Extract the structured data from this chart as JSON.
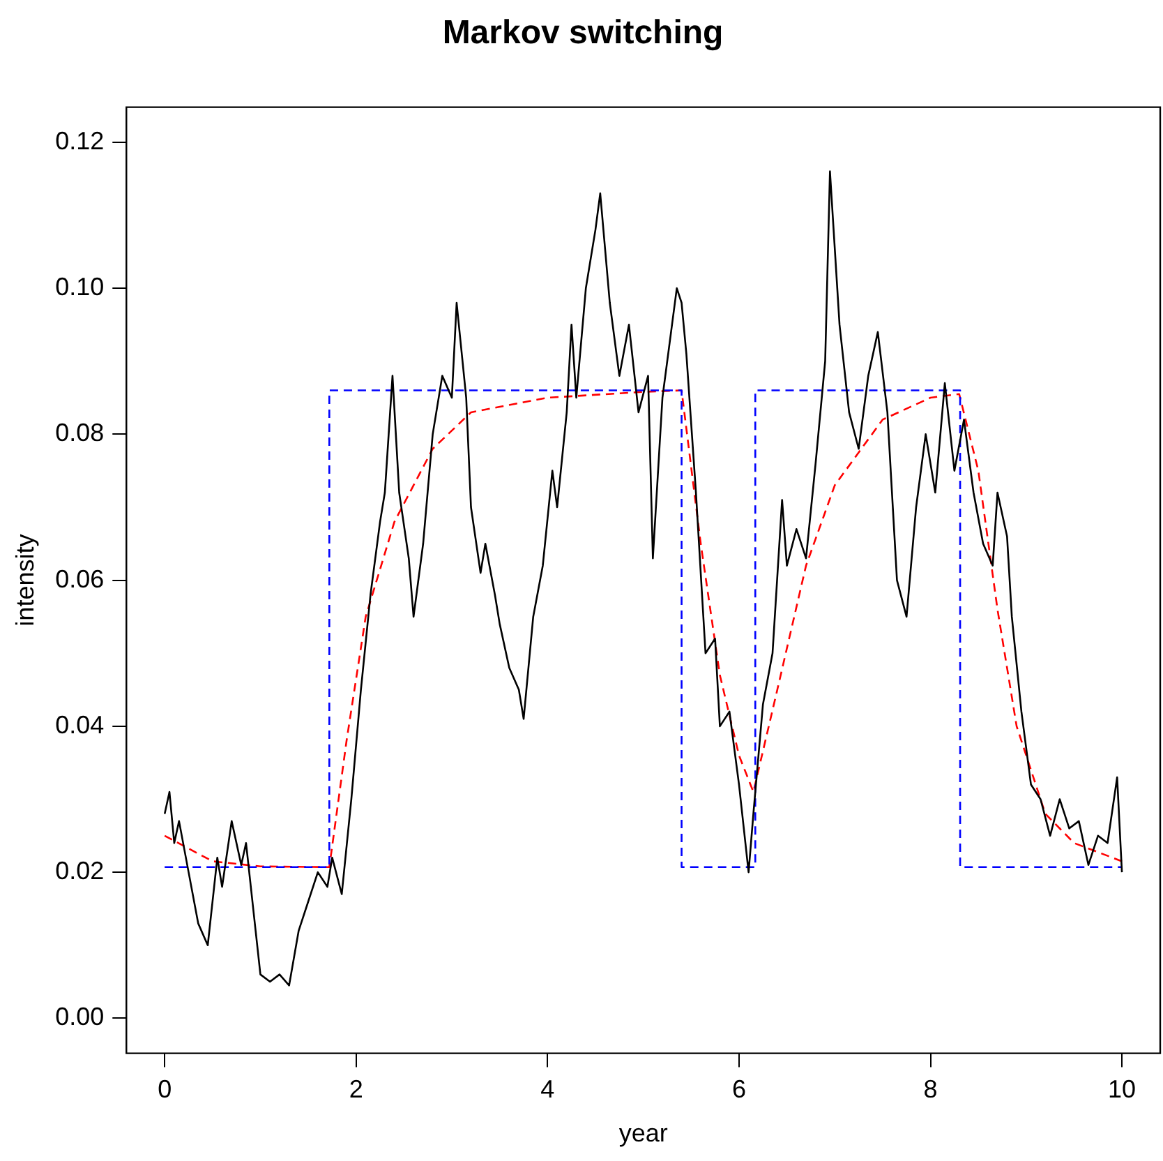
{
  "chart_data": {
    "type": "line",
    "title": "Markov switching",
    "xlabel": "year",
    "ylabel": "intensity",
    "xlim": [
      -0.4,
      10.4
    ],
    "xticks": [
      0,
      2,
      4,
      6,
      8,
      10
    ],
    "ylim": [
      -0.0048,
      0.1248
    ],
    "yticks": [
      {
        "value": 0,
        "label": "0.00"
      },
      0.02,
      0.04,
      0.06,
      0.08,
      {
        "value": 0.1,
        "label": "0.10"
      },
      0.12
    ],
    "grid": false,
    "legend": false,
    "marker": "none",
    "series": [
      {
        "color": "#000000",
        "line_style": "solid",
        "x": [
          0,
          0.05,
          0.1,
          0.15,
          0.25,
          0.35,
          0.45,
          0.55,
          0.6,
          0.7,
          0.8,
          0.85,
          0.95,
          1.0,
          1.1,
          1.2,
          1.3,
          1.4,
          1.5,
          1.6,
          1.7,
          1.75,
          1.85,
          1.95,
          2.05,
          2.15,
          2.25,
          2.3,
          2.38,
          2.45,
          2.55,
          2.6,
          2.7,
          2.8,
          2.9,
          3.0,
          3.05,
          3.15,
          3.2,
          3.3,
          3.35,
          3.45,
          3.5,
          3.6,
          3.7,
          3.75,
          3.85,
          3.95,
          4.05,
          4.1,
          4.2,
          4.25,
          4.3,
          4.4,
          4.5,
          4.55,
          4.65,
          4.75,
          4.85,
          4.95,
          5.05,
          5.1,
          5.2,
          5.3,
          5.35,
          5.4,
          5.45,
          5.55,
          5.65,
          5.75,
          5.8,
          5.9,
          6.0,
          6.1,
          6.15,
          6.25,
          6.35,
          6.45,
          6.5,
          6.6,
          6.7,
          6.8,
          6.9,
          6.95,
          7.05,
          7.15,
          7.25,
          7.35,
          7.45,
          7.55,
          7.65,
          7.75,
          7.85,
          7.95,
          8.05,
          8.15,
          8.25,
          8.35,
          8.45,
          8.55,
          8.65,
          8.7,
          8.8,
          8.85,
          8.95,
          9.05,
          9.15,
          9.25,
          9.35,
          9.45,
          9.55,
          9.65,
          9.75,
          9.85,
          9.95,
          10.0
        ],
        "values": [
          0.028,
          0.031,
          0.024,
          0.027,
          0.02,
          0.013,
          0.01,
          0.022,
          0.018,
          0.027,
          0.021,
          0.024,
          0.012,
          0.006,
          0.005,
          0.006,
          0.0045,
          0.012,
          0.016,
          0.02,
          0.018,
          0.022,
          0.017,
          0.03,
          0.045,
          0.058,
          0.068,
          0.072,
          0.088,
          0.072,
          0.063,
          0.055,
          0.065,
          0.08,
          0.088,
          0.085,
          0.098,
          0.085,
          0.07,
          0.061,
          0.065,
          0.058,
          0.054,
          0.048,
          0.045,
          0.041,
          0.055,
          0.062,
          0.075,
          0.07,
          0.083,
          0.095,
          0.085,
          0.1,
          0.108,
          0.113,
          0.098,
          0.088,
          0.095,
          0.083,
          0.088,
          0.063,
          0.085,
          0.095,
          0.1,
          0.098,
          0.091,
          0.072,
          0.05,
          0.052,
          0.04,
          0.042,
          0.032,
          0.02,
          0.028,
          0.043,
          0.05,
          0.071,
          0.062,
          0.067,
          0.063,
          0.076,
          0.09,
          0.116,
          0.095,
          0.083,
          0.078,
          0.088,
          0.094,
          0.083,
          0.06,
          0.055,
          0.07,
          0.08,
          0.072,
          0.087,
          0.075,
          0.082,
          0.072,
          0.065,
          0.062,
          0.072,
          0.066,
          0.055,
          0.042,
          0.032,
          0.03,
          0.025,
          0.03,
          0.026,
          0.027,
          0.021,
          0.025,
          0.024,
          0.033,
          0.02
        ]
      },
      {
        "color": "#0000ff",
        "line_style": "dashed",
        "x": [
          0,
          1.72,
          1.72,
          5.4,
          5.4,
          6.17,
          6.17,
          8.31,
          8.31,
          10
        ],
        "values": [
          0.0207,
          0.0207,
          0.086,
          0.086,
          0.0207,
          0.0207,
          0.086,
          0.086,
          0.0207,
          0.0207
        ]
      },
      {
        "color": "#ff0000",
        "line_style": "dashed",
        "x": [
          0,
          0.5,
          1,
          1.72,
          1.9,
          2.1,
          2.4,
          2.8,
          3.2,
          4,
          5,
          5.4,
          5.6,
          5.8,
          6.0,
          6.15,
          6.4,
          6.7,
          7.0,
          7.5,
          8.0,
          8.3,
          8.5,
          8.7,
          8.9,
          9.2,
          9.5,
          10
        ],
        "values": [
          0.025,
          0.0215,
          0.0208,
          0.0207,
          0.038,
          0.055,
          0.068,
          0.078,
          0.083,
          0.085,
          0.0858,
          0.086,
          0.065,
          0.047,
          0.036,
          0.031,
          0.045,
          0.062,
          0.073,
          0.082,
          0.085,
          0.0855,
          0.075,
          0.056,
          0.04,
          0.028,
          0.024,
          0.0215
        ]
      }
    ]
  }
}
